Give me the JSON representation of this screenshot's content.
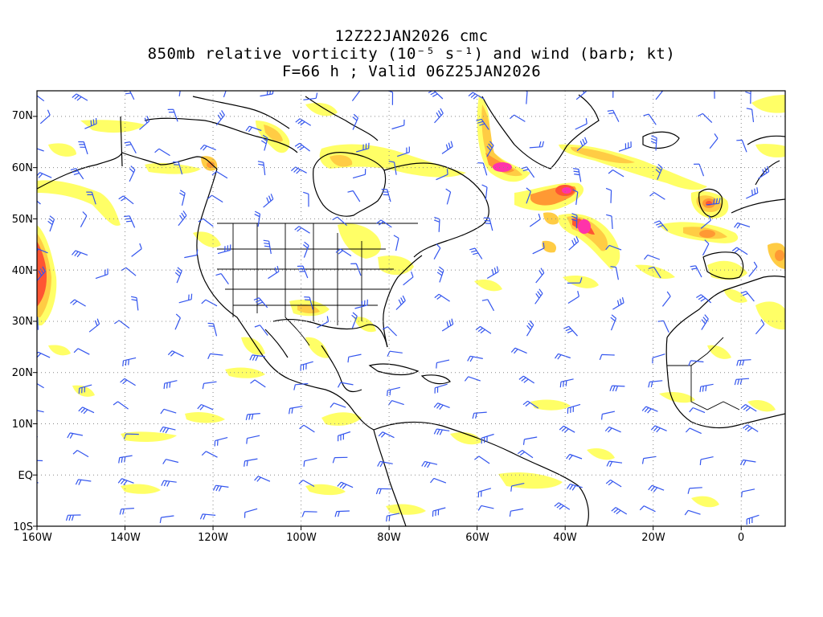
{
  "header": {
    "line1": "12Z22JAN2026 cmc",
    "line2": "850mb relative vorticity (10⁻⁵ s⁻¹) and wind (barb; kt)",
    "line3": "F=66 h ; Valid 06Z25JAN2026"
  },
  "map": {
    "lat_ticks": [
      "70N",
      "60N",
      "50N",
      "40N",
      "30N",
      "20N",
      "10N",
      "EQ",
      "10S"
    ],
    "lon_ticks": [
      "160W",
      "140W",
      "120W",
      "100W",
      "80W",
      "60W",
      "40W",
      "20W",
      "0"
    ],
    "lat_range": [
      -10,
      75
    ],
    "lon_range": [
      -160,
      10
    ],
    "grid": "dotted",
    "colors": {
      "vort_low": "#ffff66",
      "vort_mid": "#ffcc44",
      "vort_high": "#ff9933",
      "vort_higher": "#ff5533",
      "vort_max": "#ff33aa",
      "barb": "#3355ee",
      "coast": "#000000",
      "grid": "#888888"
    }
  }
}
